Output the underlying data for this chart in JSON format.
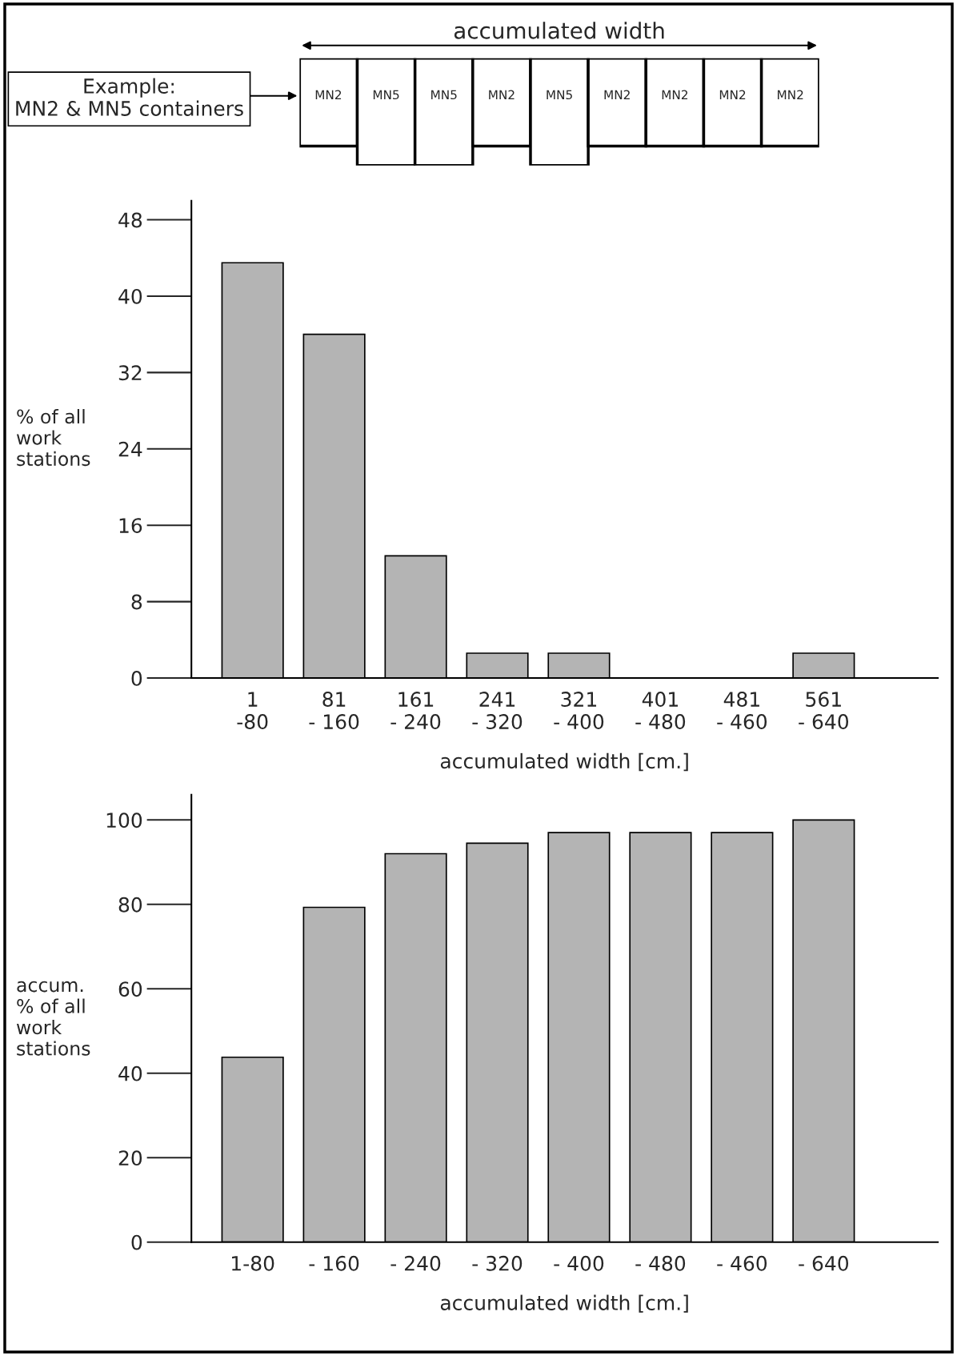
{
  "chart_data": [
    {
      "type": "other",
      "title": "accumulated width",
      "annotations": [
        "Example:\nMN2 & MN5 containers"
      ],
      "categories": [
        "MN2",
        "MN5",
        "MN5",
        "MN2",
        "MN5",
        "MN2",
        "MN2",
        "MN2",
        "MN2"
      ],
      "color": "#ffffff"
    },
    {
      "type": "bar",
      "categories": [
        "1\n-80",
        "81\n- 160",
        "161\n- 240",
        "241\n- 320",
        "321\n- 400",
        "401\n- 480",
        "481\n- 460",
        "561\n- 640"
      ],
      "values": [
        43.5,
        36,
        12.8,
        2.6,
        2.6,
        0,
        0,
        2.6
      ],
      "color": "#b4b4b4",
      "ylabel": "% of all\nwork\nstations",
      "xlabel": "accumulated width [cm.]",
      "ylim": [
        0,
        50
      ],
      "yticks": [
        0,
        8,
        16,
        24,
        32,
        40,
        48
      ],
      "grid": false,
      "legend": false
    },
    {
      "type": "bar",
      "categories": [
        "1-80",
        "- 160",
        "- 240",
        "- 320",
        "- 400",
        "- 480",
        "- 460",
        "- 640"
      ],
      "values": [
        43.8,
        79.3,
        92,
        94.5,
        97,
        97,
        97,
        100
      ],
      "color": "#b4b4b4",
      "ylabel": "accum.\n% of all\nwork\nstations",
      "xlabel": "accumulated width [cm.]",
      "ylim": [
        0,
        106
      ],
      "yticks": [
        0,
        20,
        40,
        60,
        80,
        100
      ],
      "grid": false,
      "legend": false
    }
  ]
}
